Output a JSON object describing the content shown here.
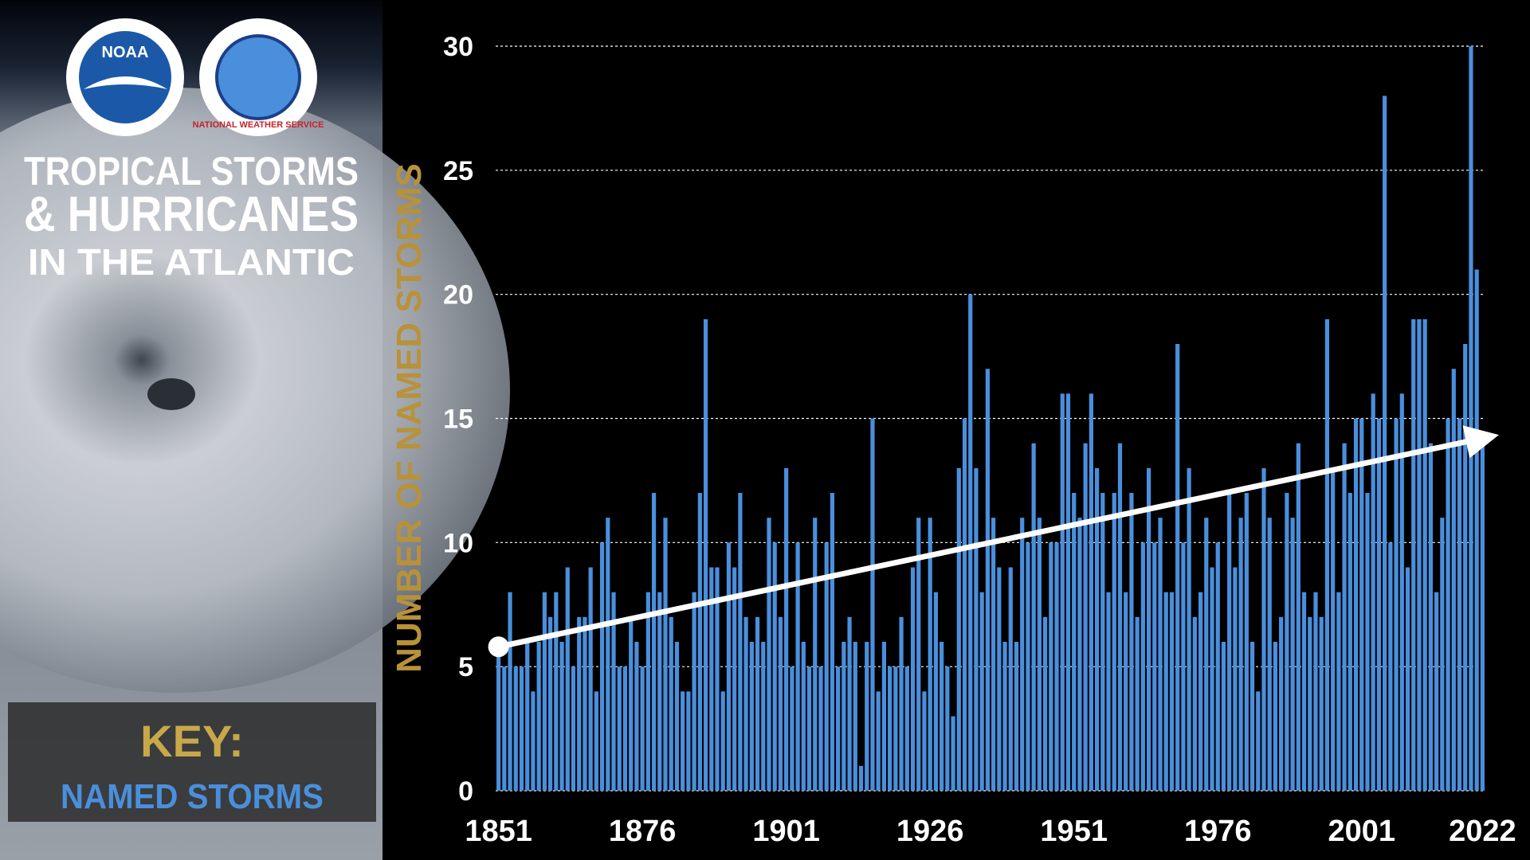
{
  "panel": {
    "title_lines": [
      "TROPICAL STORMS",
      "& HURRICANES",
      "IN THE ATLANTIC"
    ],
    "key_label": "KEY:",
    "logos": [
      "NOAA",
      "NATIONAL WEATHER SERVICE"
    ]
  },
  "chart_data": {
    "type": "bar",
    "y_label": "NUMBER OF NAMED STORMS",
    "x": [
      1851,
      1852,
      1853,
      1854,
      1855,
      1856,
      1857,
      1858,
      1859,
      1860,
      1861,
      1862,
      1863,
      1864,
      1865,
      1866,
      1867,
      1868,
      1869,
      1870,
      1871,
      1872,
      1873,
      1874,
      1875,
      1876,
      1877,
      1878,
      1879,
      1880,
      1881,
      1882,
      1883,
      1884,
      1885,
      1886,
      1887,
      1888,
      1889,
      1890,
      1891,
      1892,
      1893,
      1894,
      1895,
      1896,
      1897,
      1898,
      1899,
      1900,
      1901,
      1902,
      1903,
      1904,
      1905,
      1906,
      1907,
      1908,
      1909,
      1910,
      1911,
      1912,
      1913,
      1914,
      1915,
      1916,
      1917,
      1918,
      1919,
      1920,
      1921,
      1922,
      1923,
      1924,
      1925,
      1926,
      1927,
      1928,
      1929,
      1930,
      1931,
      1932,
      1933,
      1934,
      1935,
      1936,
      1937,
      1938,
      1939,
      1940,
      1941,
      1942,
      1943,
      1944,
      1945,
      1946,
      1947,
      1948,
      1949,
      1950,
      1951,
      1952,
      1953,
      1954,
      1955,
      1956,
      1957,
      1958,
      1959,
      1960,
      1961,
      1962,
      1963,
      1964,
      1965,
      1966,
      1967,
      1968,
      1969,
      1970,
      1971,
      1972,
      1973,
      1974,
      1975,
      1976,
      1977,
      1978,
      1979,
      1980,
      1981,
      1982,
      1983,
      1984,
      1985,
      1986,
      1987,
      1988,
      1989,
      1990,
      1991,
      1992,
      1993,
      1994,
      1995,
      1996,
      1997,
      1998,
      1999,
      2000,
      2001,
      2002,
      2003,
      2004,
      2005,
      2006,
      2007,
      2008,
      2009,
      2010,
      2011,
      2012,
      2013,
      2014,
      2015,
      2016,
      2017,
      2018,
      2019,
      2020,
      2021,
      2022
    ],
    "series": [
      {
        "name": "NAMED STORMS",
        "color": "#4a8fdc",
        "values": [
          6,
          5,
          8,
          5,
          5,
          6,
          4,
          6,
          8,
          7,
          8,
          6,
          9,
          5,
          7,
          7,
          9,
          4,
          10,
          11,
          8,
          5,
          5,
          7,
          6,
          5,
          8,
          12,
          8,
          11,
          7,
          6,
          4,
          4,
          8,
          12,
          19,
          9,
          9,
          4,
          10,
          9,
          12,
          7,
          6,
          7,
          6,
          11,
          10,
          7,
          13,
          5,
          10,
          6,
          5,
          11,
          5,
          10,
          12,
          5,
          6,
          7,
          6,
          1,
          6,
          15,
          4,
          6,
          5,
          5,
          7,
          5,
          9,
          11,
          4,
          11,
          8,
          6,
          5,
          3,
          13,
          15,
          20,
          13,
          8,
          17,
          11,
          9,
          6,
          9,
          6,
          11,
          10,
          14,
          11,
          7,
          10,
          10,
          16,
          16,
          12,
          11,
          14,
          16,
          13,
          12,
          8,
          12,
          14,
          8,
          12,
          7,
          10,
          13,
          10,
          11,
          8,
          8,
          18,
          10,
          13,
          7,
          8,
          11,
          9,
          10,
          6,
          12,
          9,
          11,
          12,
          6,
          4,
          13,
          11,
          6,
          7,
          12,
          11,
          14,
          8,
          7,
          8,
          7,
          19,
          13,
          8,
          14,
          12,
          15,
          15,
          12,
          16,
          15,
          28,
          10,
          15,
          16,
          9,
          19,
          19,
          19,
          14,
          8,
          11,
          15,
          17,
          15,
          18,
          30,
          21,
          14
        ]
      }
    ],
    "trend": {
      "x": [
        1851,
        2022
      ],
      "values": [
        5.8,
        14.2
      ]
    },
    "xlim": [
      1850.5,
      2022.5
    ],
    "xticks": [
      1851,
      1876,
      1901,
      1926,
      1951,
      1976,
      2001,
      2022
    ],
    "ylim": [
      0,
      30
    ],
    "yticks": [
      0,
      5,
      10,
      15,
      20,
      25,
      30
    ],
    "grid": true
  }
}
